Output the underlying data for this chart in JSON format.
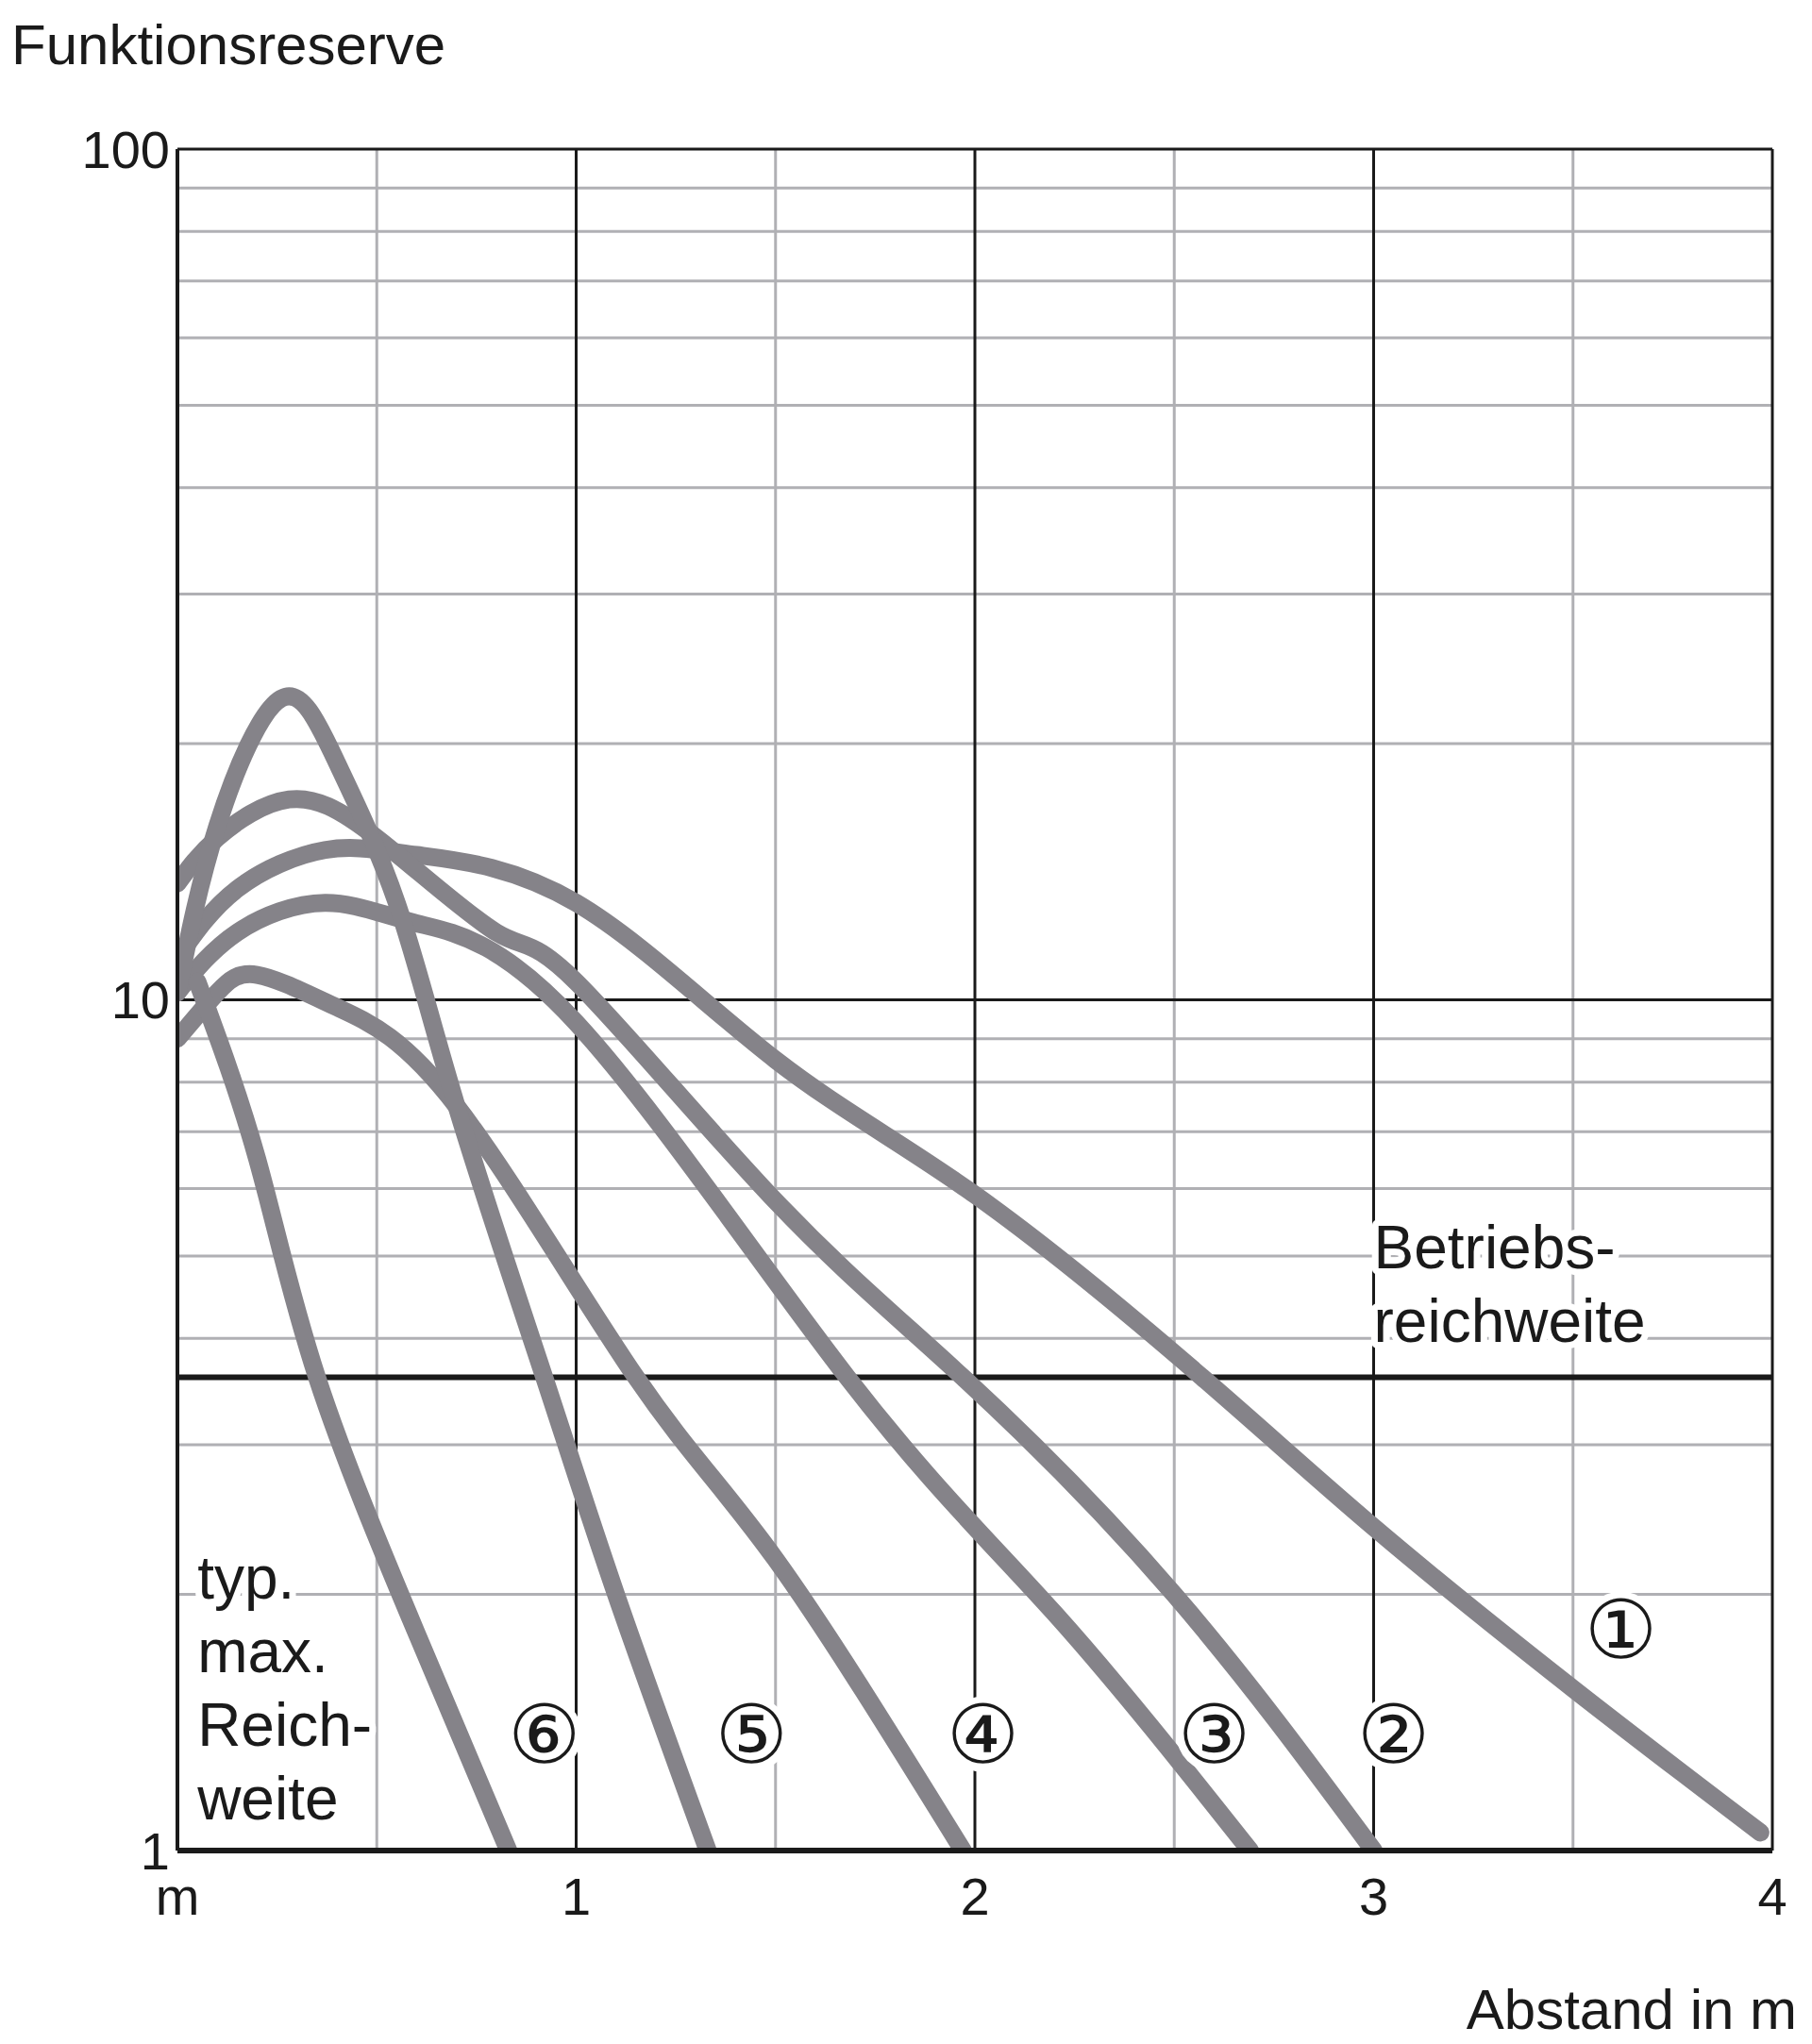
{
  "chart_data": {
    "type": "line",
    "ylabel": "Funktionsreserve",
    "xlabel": "Abstand in m",
    "xlim": [
      0,
      4
    ],
    "xticks": [
      {
        "value": 0,
        "label": "m"
      },
      {
        "value": 0.5,
        "label": null
      },
      1,
      {
        "value": 1.5,
        "label": null
      },
      2,
      {
        "value": 2.5,
        "label": null
      },
      3,
      {
        "value": 3.5,
        "label": null
      },
      4
    ],
    "ylim": [
      1,
      100
    ],
    "yticks": [
      1,
      {
        "value": 2,
        "label": null
      },
      {
        "value": 3,
        "label": null
      },
      {
        "value": 4,
        "label": null
      },
      {
        "value": 5,
        "label": null
      },
      {
        "value": 6,
        "label": null
      },
      {
        "value": 7,
        "label": null
      },
      {
        "value": 8,
        "label": null
      },
      {
        "value": 9,
        "label": null
      },
      10,
      {
        "value": 20,
        "label": null
      },
      {
        "value": 30,
        "label": null
      },
      {
        "value": 40,
        "label": null
      },
      {
        "value": 50,
        "label": null
      },
      {
        "value": 60,
        "label": null
      },
      {
        "value": 70,
        "label": null
      },
      {
        "value": 80,
        "label": null
      },
      {
        "value": 90,
        "label": null
      },
      100
    ],
    "log": "y",
    "grid": true,
    "marker": "none",
    "line_style": "solid",
    "series": [
      {
        "name": "①",
        "color": "#858389",
        "x": [
          0,
          0.15,
          0.37,
          0.6,
          1,
          1.5,
          2,
          2.57,
          3,
          3.5,
          3.97
        ],
        "values": [
          11.2,
          13.5,
          15,
          14.8,
          13,
          8.5,
          5.9,
          3.6,
          2.4,
          1.55,
          1.05
        ]
      },
      {
        "name": "②",
        "color": "#858389",
        "x": [
          0,
          0.1,
          0.28,
          0.5,
          0.8,
          1,
          1.5,
          1.97,
          2.5,
          3
        ],
        "values": [
          13.7,
          15.5,
          17.2,
          15.5,
          12,
          10.5,
          5.8,
          3.6,
          2,
          1
        ]
      },
      {
        "name": "③",
        "color": "#858389",
        "x": [
          0,
          0.15,
          0.37,
          0.6,
          1,
          1.68,
          2.2,
          2.69
        ],
        "values": [
          10.2,
          12,
          13,
          12.3,
          9.4,
          3.6,
          1.9,
          1
        ]
      },
      {
        "name": "④",
        "color": "#858389",
        "x": [
          0,
          0.1,
          0.2,
          0.4,
          0.7,
          1.15,
          1.5,
          1.97
        ],
        "values": [
          9,
          10.2,
          10.7,
          9.8,
          7.5,
          3.6,
          2.2,
          1
        ]
      },
      {
        "name": "⑤",
        "color": "#858389",
        "x": [
          0,
          0.1,
          0.26,
          0.4,
          0.55,
          0.7,
          0.92,
          1.1,
          1.33
        ],
        "values": [
          10.2,
          16,
          22.6,
          19,
          13,
          7.5,
          3.6,
          2,
          1
        ]
      },
      {
        "name": "⑥",
        "color": "#858389",
        "x": [
          0.05,
          0.2,
          0.35,
          0.6,
          0.83
        ],
        "values": [
          10.5,
          6.5,
          3.6,
          1.8,
          1
        ]
      }
    ],
    "ref_lines": [
      {
        "axis": "y",
        "value": 3.6,
        "label": "Betriebs-\nreichweite",
        "color": "#1a1a1a"
      }
    ],
    "annotations": [
      "typ.\nmax.\nReich-\nweite"
    ]
  }
}
